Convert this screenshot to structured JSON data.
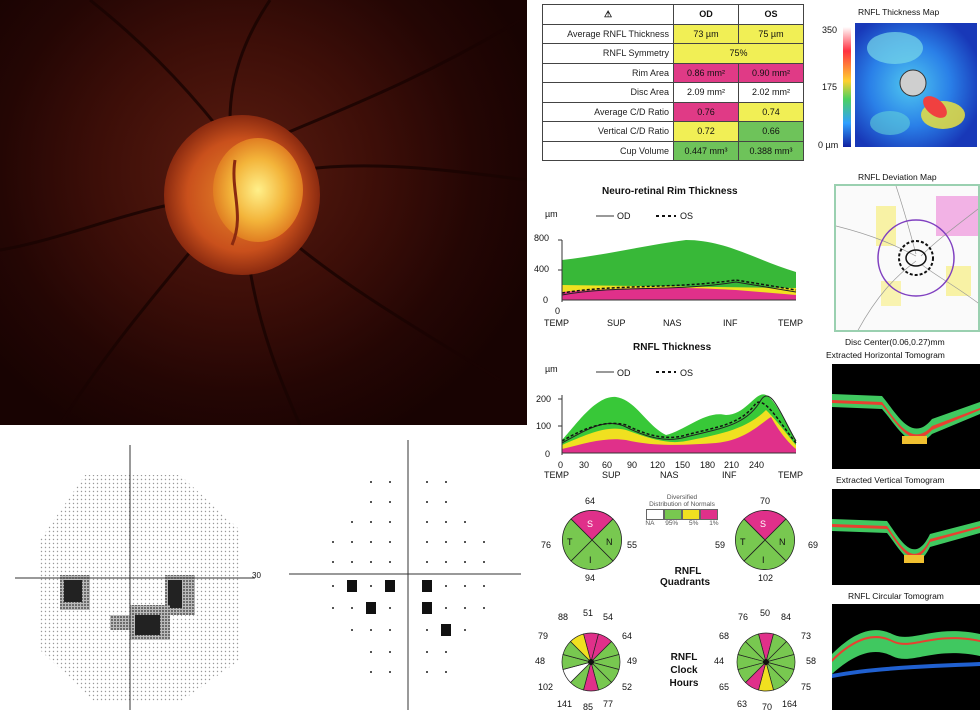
{
  "stats_table": {
    "header_od": "OD",
    "header_os": "OS",
    "rows": [
      {
        "label": "Average RNFL Thickness",
        "od": "73 µm",
        "os": "75 µm",
        "od_color": "yellow",
        "os_color": "yellow"
      },
      {
        "label": "RNFL Symmetry",
        "merged": "75%",
        "color": "yellow"
      },
      {
        "label": "Rim Area",
        "od": "0.86 mm²",
        "os": "0.90 mm²",
        "od_color": "red",
        "os_color": "red"
      },
      {
        "label": "Disc Area",
        "od": "2.09 mm²",
        "os": "2.02 mm²",
        "od_color": "white",
        "os_color": "white"
      },
      {
        "label": "Average C/D Ratio",
        "od": "0.76",
        "os": "0.74",
        "od_color": "red",
        "os_color": "yellow"
      },
      {
        "label": "Vertical C/D Ratio",
        "od": "0.72",
        "os": "0.66",
        "od_color": "yellow",
        "os_color": "green"
      },
      {
        "label": "Cup Volume",
        "od": "0.447 mm³",
        "os": "0.388 mm³",
        "od_color": "green",
        "os_color": "green"
      }
    ]
  },
  "thickness_map": {
    "title": "RNFL Thickness Map",
    "scale_top": "350",
    "scale_mid": "175",
    "scale_bottom": "0 µm"
  },
  "deviation_map": {
    "title": "RNFL Deviation Map",
    "disc_center": "Disc Center(0.06,0.27)mm"
  },
  "rim_chart": {
    "title": "Neuro-retinal Rim Thickness",
    "unit": "µm",
    "legend_od": "OD",
    "legend_os": "OS",
    "y_ticks": [
      "800",
      "400",
      "0"
    ],
    "x_ticks": [
      "TEMP",
      "SUP",
      "NAS",
      "INF",
      "TEMP"
    ],
    "x_origin": "0"
  },
  "rnfl_chart": {
    "title": "RNFL Thickness",
    "unit": "µm",
    "legend_od": "OD",
    "legend_os": "OS",
    "y_ticks": [
      "200",
      "100",
      "0"
    ],
    "x_ticks": [
      "0",
      "30",
      "60",
      "90",
      "120",
      "150",
      "180",
      "210",
      "240"
    ],
    "x_regions": [
      "TEMP",
      "SUP",
      "NAS",
      "INF",
      "TEMP"
    ]
  },
  "tomograms": {
    "horizontal": "Extracted Horizontal Tomogram",
    "vertical": "Extracted Vertical Tomogram",
    "circular": "RNFL Circular Tomogram"
  },
  "quadrants": {
    "label_line1": "RNFL",
    "label_line2": "Quadrants",
    "od": {
      "top": "64",
      "left": "76",
      "right": "55",
      "bottom": "94",
      "s": "S",
      "t": "T",
      "n": "N",
      "i": "I"
    },
    "os": {
      "top": "70",
      "left": "59",
      "right": "69",
      "bottom": "102",
      "s": "S",
      "t": "T",
      "n": "N",
      "i": "I"
    }
  },
  "distribution_legend": {
    "title_line1": "Diversified",
    "title_line2": "Distribution of Normals",
    "labels": [
      "NA",
      "95%",
      "5%",
      "1%"
    ]
  },
  "clock_hours": {
    "label_line1": "RNFL",
    "label_line2": "Clock",
    "label_line3": "Hours",
    "od": [
      "51",
      "54",
      "64",
      "49",
      "52",
      "77",
      "85",
      "141",
      "102",
      "48",
      "79",
      "88"
    ],
    "os": [
      "50",
      "84",
      "73",
      "58",
      "75",
      "164",
      "70",
      "63",
      "65",
      "44",
      "68",
      "76"
    ]
  },
  "visual_field": {
    "scale_label": "30"
  }
}
